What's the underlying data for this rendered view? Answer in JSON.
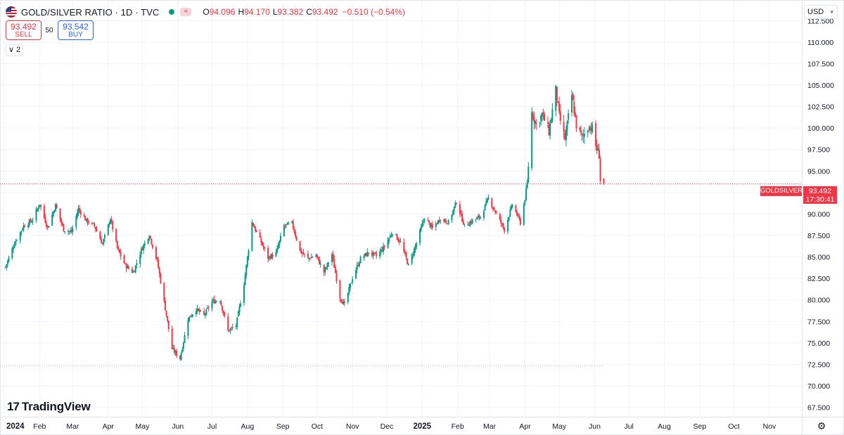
{
  "header": {
    "symbol": "GOLD/SILVER RATIO · 1D · TVC",
    "wave_icon_glyph": "≈",
    "open_label": "O",
    "open": "94.096",
    "high_label": "H",
    "high": "94.170",
    "low_label": "L",
    "low": "93.382",
    "close_label": "C",
    "close": "93.492",
    "change": "−0.510 (−0.54%)"
  },
  "trade": {
    "sell_price": "93.492",
    "sell_label": "SELL",
    "spread": "50",
    "buy_price": "93.542",
    "buy_label": "BUY"
  },
  "indicators": {
    "chevron": "∨",
    "count": "2"
  },
  "currency": {
    "label": "USD",
    "caret": "▾"
  },
  "price_tag": {
    "symbol": "GOLDSILVER",
    "price": "93.492",
    "countdown": "17:30:41"
  },
  "branding": {
    "logo_mark": "17",
    "logo_text": "TradingView"
  },
  "settings_icon_glyph": "⚙",
  "colors": {
    "up": "#089981",
    "down": "#f23645",
    "grid": "#f0f3fa",
    "axis_text": "#131722"
  },
  "chart_data": {
    "type": "candlestick",
    "title": "GOLD/SILVER RATIO",
    "interval": "1D",
    "source": "TVC",
    "y_ticks": [
      112.5,
      110.0,
      107.5,
      105.0,
      102.5,
      100.0,
      97.5,
      95.0,
      92.5,
      90.0,
      87.5,
      85.0,
      82.5,
      80.0,
      77.5,
      75.0,
      72.5,
      70.0,
      67.5
    ],
    "y_tick_labels": [
      "112.500",
      "110.000",
      "107.500",
      "105.000",
      "102.500",
      "100.000",
      "97.500",
      "95.000",
      "92.500",
      "90.000",
      "87.500",
      "85.000",
      "82.500",
      "80.000",
      "77.500",
      "75.000",
      "72.500",
      "70.000",
      "67.500"
    ],
    "ylim": [
      66.4,
      114.9
    ],
    "x_labels": [
      "2024",
      "Feb",
      "Mar",
      "Apr",
      "May",
      "Jun",
      "Jul",
      "Aug",
      "Sep",
      "Oct",
      "Nov",
      "Dec",
      "2025",
      "Feb",
      "Mar",
      "Apr",
      "May",
      "Jun",
      "Jul",
      "Aug",
      "Sep",
      "Oct",
      "Nov"
    ],
    "x_label_bold": [
      "2024",
      "2025"
    ],
    "x_start": "2024-01-01",
    "x_end": "2025-11-30",
    "last_close": 93.492,
    "dotted_low_level": 72.3,
    "monthly_path": [
      [
        "2024-01-02",
        83.8
      ],
      [
        "2024-01-10",
        86.6
      ],
      [
        "2024-01-18",
        88.6
      ],
      [
        "2024-01-26",
        89.3
      ],
      [
        "2024-02-01",
        91.2
      ],
      [
        "2024-02-08",
        88.4
      ],
      [
        "2024-02-15",
        91.0
      ],
      [
        "2024-02-22",
        88.2
      ],
      [
        "2024-02-29",
        87.9
      ],
      [
        "2024-03-06",
        90.6
      ],
      [
        "2024-03-13",
        89.2
      ],
      [
        "2024-03-20",
        88.6
      ],
      [
        "2024-03-27",
        86.5
      ],
      [
        "2024-04-03",
        89.5
      ],
      [
        "2024-04-09",
        86.0
      ],
      [
        "2024-04-16",
        84.0
      ],
      [
        "2024-04-23",
        83.2
      ],
      [
        "2024-04-30",
        85.8
      ],
      [
        "2024-05-07",
        87.6
      ],
      [
        "2024-05-14",
        84.5
      ],
      [
        "2024-05-21",
        79.0
      ],
      [
        "2024-05-27",
        74.3
      ],
      [
        "2024-06-03",
        73.2
      ],
      [
        "2024-06-10",
        77.8
      ],
      [
        "2024-06-17",
        78.9
      ],
      [
        "2024-06-24",
        78.2
      ],
      [
        "2024-07-01",
        79.8
      ],
      [
        "2024-07-08",
        80.0
      ],
      [
        "2024-07-15",
        76.4
      ],
      [
        "2024-07-22",
        77.0
      ],
      [
        "2024-07-29",
        81.9
      ],
      [
        "2024-08-05",
        89.0
      ],
      [
        "2024-08-12",
        87.0
      ],
      [
        "2024-08-19",
        84.9
      ],
      [
        "2024-08-26",
        85.4
      ],
      [
        "2024-09-02",
        88.6
      ],
      [
        "2024-09-09",
        88.9
      ],
      [
        "2024-09-16",
        85.7
      ],
      [
        "2024-09-23",
        84.8
      ],
      [
        "2024-09-30",
        85.2
      ],
      [
        "2024-10-07",
        83.2
      ],
      [
        "2024-10-14",
        85.3
      ],
      [
        "2024-10-21",
        80.3
      ],
      [
        "2024-10-25",
        79.4
      ],
      [
        "2024-11-01",
        82.6
      ],
      [
        "2024-11-08",
        84.8
      ],
      [
        "2024-11-15",
        85.5
      ],
      [
        "2024-11-22",
        85.1
      ],
      [
        "2024-11-29",
        86.2
      ],
      [
        "2024-12-06",
        87.9
      ],
      [
        "2024-12-13",
        86.7
      ],
      [
        "2024-12-20",
        84.0
      ],
      [
        "2024-12-27",
        86.6
      ],
      [
        "2025-01-03",
        89.6
      ],
      [
        "2025-01-10",
        88.3
      ],
      [
        "2025-01-17",
        89.5
      ],
      [
        "2025-01-24",
        89.0
      ],
      [
        "2025-01-31",
        91.4
      ],
      [
        "2025-02-07",
        88.6
      ],
      [
        "2025-02-14",
        89.2
      ],
      [
        "2025-02-21",
        89.7
      ],
      [
        "2025-02-28",
        91.8
      ],
      [
        "2025-03-07",
        90.0
      ],
      [
        "2025-03-14",
        88.2
      ],
      [
        "2025-03-21",
        91.1
      ],
      [
        "2025-03-28",
        89.0
      ],
      [
        "2025-04-01",
        91.8
      ],
      [
        "2025-04-03",
        93.6
      ],
      [
        "2025-04-07",
        101.8
      ],
      [
        "2025-04-11",
        100.4
      ],
      [
        "2025-04-16",
        101.6
      ],
      [
        "2025-04-22",
        99.6
      ],
      [
        "2025-04-28",
        104.5
      ],
      [
        "2025-05-01",
        101.4
      ],
      [
        "2025-05-06",
        98.7
      ],
      [
        "2025-05-12",
        103.8
      ],
      [
        "2025-05-16",
        100.3
      ],
      [
        "2025-05-21",
        98.9
      ],
      [
        "2025-05-27",
        100.2
      ],
      [
        "2025-05-30",
        100.0
      ],
      [
        "2025-06-02",
        97.9
      ],
      [
        "2025-06-05",
        96.9
      ],
      [
        "2025-06-06",
        93.9
      ],
      [
        "2025-06-09",
        93.492
      ]
    ]
  }
}
